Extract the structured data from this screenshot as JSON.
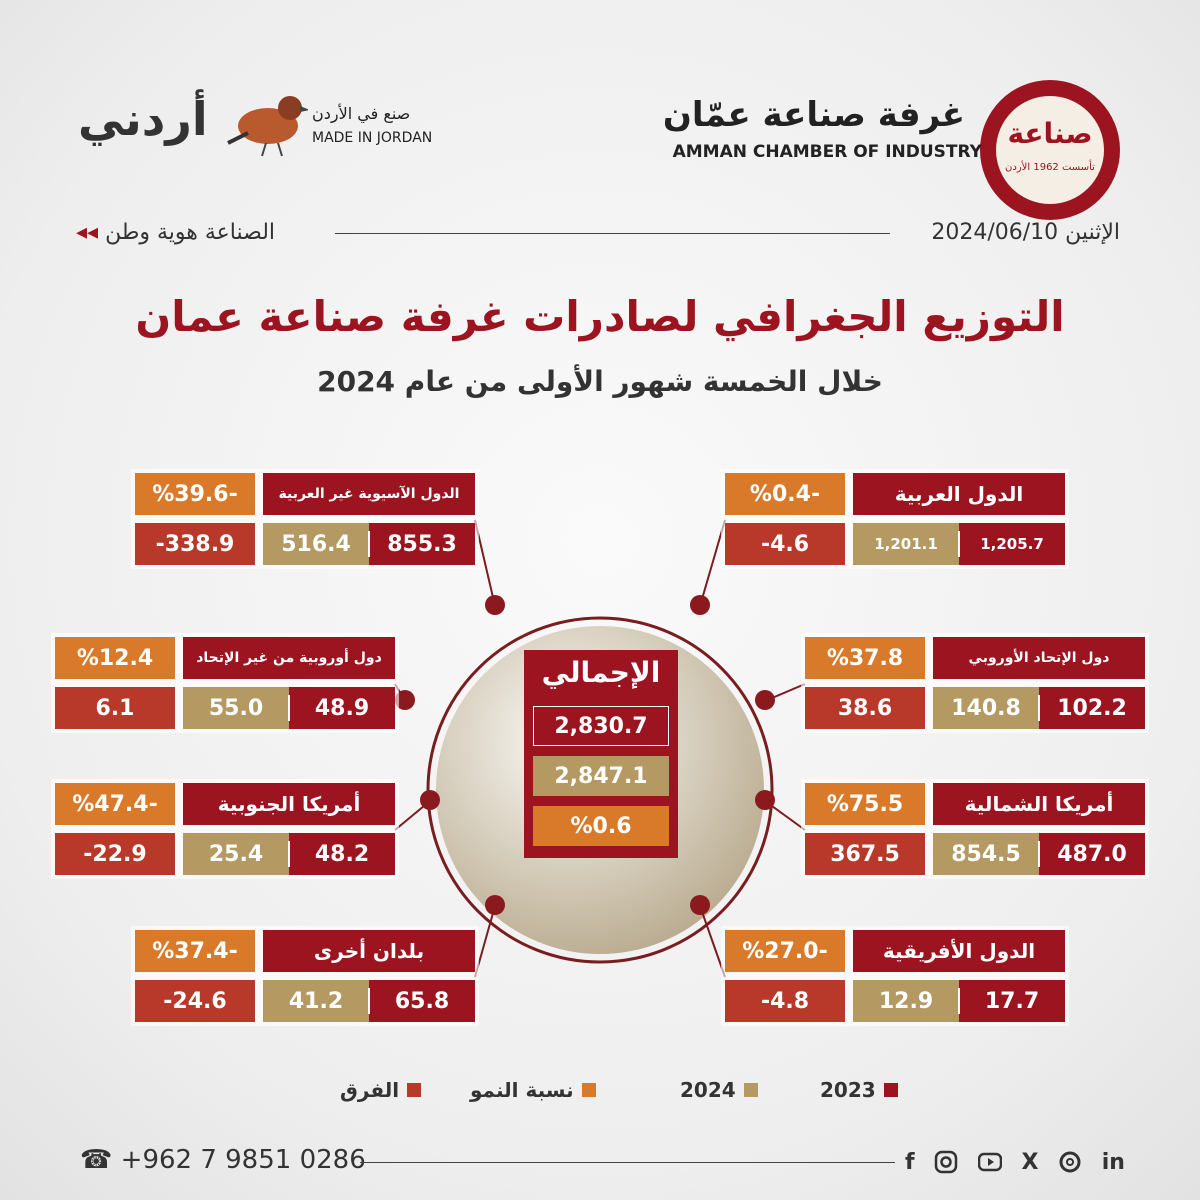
{
  "header": {
    "logo_text": "صناعة",
    "logo_year": "تأسست 1962 الأردن",
    "chamber_ar": "غرفة صناعة عمّان",
    "chamber_en": "AMMAN CHAMBER OF INDUSTRY",
    "made_ar": "صنع في الأردن",
    "made_en": "MADE IN JORDAN",
    "brand": "أردني",
    "date": "الإثنين 2024/06/10",
    "slogan": "الصناعة هوية وطن"
  },
  "title": "التوزيع الجغرافي لصادرات غرفة صناعة عمان",
  "subtitle": "خلال الخمسة شهور الأولى من عام 2024",
  "total": {
    "label": "الإجمالي",
    "y2023": "2,830.7",
    "y2024": "2,847.1",
    "growth": "%0.6"
  },
  "regions": [
    {
      "name": "الدول الآسيوية غير العربية",
      "growth": "%39.6-",
      "y2023": "855.3",
      "y2024": "516.4",
      "diff": "-338.9"
    },
    {
      "name": "الدول العربية",
      "growth": "%0.4-",
      "y2023": "1,205.7",
      "y2024": "1,201.1",
      "diff": "-4.6"
    },
    {
      "name": "دول أوروبية من غير الإتحاد",
      "growth": "%12.4",
      "y2023": "48.9",
      "y2024": "55.0",
      "diff": "6.1"
    },
    {
      "name": "دول الإتحاد الأوروبي",
      "growth": "%37.8",
      "y2023": "102.2",
      "y2024": "140.8",
      "diff": "38.6"
    },
    {
      "name": "أمريكا الجنوبية",
      "growth": "%47.4-",
      "y2023": "48.2",
      "y2024": "25.4",
      "diff": "-22.9"
    },
    {
      "name": "أمريكا الشمالية",
      "growth": "%75.5",
      "y2023": "487.0",
      "y2024": "854.5",
      "diff": "367.5"
    },
    {
      "name": "بلدان أخرى",
      "growth": "%37.4-",
      "y2023": "65.8",
      "y2024": "41.2",
      "diff": "-24.6"
    },
    {
      "name": "الدول الأفريقية",
      "growth": "%27.0-",
      "y2023": "17.7",
      "y2024": "12.9",
      "diff": "-4.8"
    }
  ],
  "legend": [
    "2023",
    "2024",
    "نسبة النمو",
    "الفرق"
  ],
  "footer": {
    "phone": "+962 7 9851 0286",
    "social": [
      "f",
      "X",
      "in"
    ]
  }
}
